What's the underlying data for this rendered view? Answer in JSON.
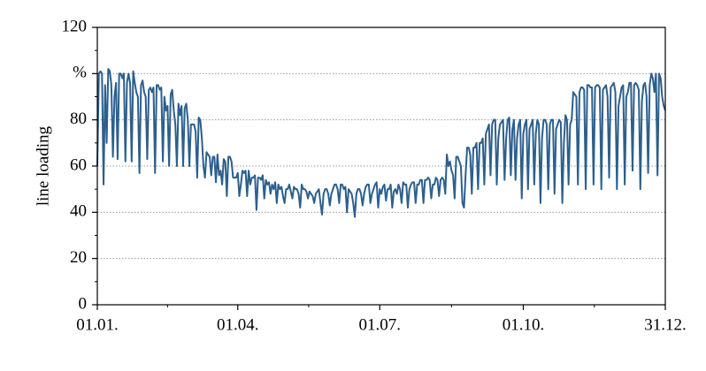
{
  "chart_data": {
    "type": "line",
    "y_label": "line loading",
    "color": "#2c5f8d",
    "xlim": [
      1,
      365
    ],
    "xticks": [
      {
        "value": 1,
        "label": "01.01."
      },
      {
        "value": 91,
        "label": "01.04."
      },
      {
        "value": 182,
        "label": "01.07."
      },
      {
        "value": 274,
        "label": "01.10."
      },
      {
        "value": 365,
        "label": "31.12."
      }
    ],
    "ylim": [
      0,
      120
    ],
    "yticks": [
      0,
      20,
      40,
      60,
      80,
      {
        "value": 100,
        "label": "%"
      },
      120
    ],
    "grid": true,
    "x": [
      1,
      2,
      3,
      4,
      5,
      6,
      7,
      8,
      9,
      10,
      11,
      12,
      13,
      14,
      15,
      16,
      17,
      18,
      19,
      20,
      21,
      22,
      23,
      24,
      25,
      26,
      27,
      28,
      29,
      30,
      31,
      32,
      33,
      34,
      35,
      36,
      37,
      38,
      39,
      40,
      41,
      42,
      43,
      44,
      45,
      46,
      47,
      48,
      49,
      50,
      51,
      52,
      53,
      54,
      55,
      56,
      57,
      58,
      59,
      60,
      61,
      62,
      63,
      64,
      65,
      66,
      67,
      68,
      69,
      70,
      71,
      72,
      73,
      74,
      75,
      76,
      77,
      78,
      79,
      80,
      81,
      82,
      83,
      84,
      85,
      86,
      87,
      88,
      89,
      90,
      91,
      92,
      93,
      94,
      95,
      96,
      97,
      98,
      99,
      100,
      101,
      102,
      103,
      104,
      105,
      106,
      107,
      108,
      109,
      110,
      111,
      112,
      113,
      114,
      115,
      116,
      117,
      118,
      119,
      120,
      121,
      122,
      123,
      124,
      125,
      126,
      127,
      128,
      129,
      130,
      131,
      132,
      133,
      134,
      135,
      136,
      137,
      138,
      139,
      140,
      141,
      142,
      143,
      144,
      145,
      146,
      147,
      148,
      149,
      150,
      151,
      152,
      153,
      154,
      155,
      156,
      157,
      158,
      159,
      160,
      161,
      162,
      163,
      164,
      165,
      166,
      167,
      168,
      169,
      170,
      171,
      172,
      173,
      174,
      175,
      176,
      177,
      178,
      179,
      180,
      181,
      182,
      183,
      184,
      185,
      186,
      187,
      188,
      189,
      190,
      191,
      192,
      193,
      194,
      195,
      196,
      197,
      198,
      199,
      200,
      201,
      202,
      203,
      204,
      205,
      206,
      207,
      208,
      209,
      210,
      211,
      212,
      213,
      214,
      215,
      216,
      217,
      218,
      219,
      220,
      221,
      222,
      223,
      224,
      225,
      226,
      227,
      228,
      229,
      230,
      231,
      232,
      233,
      234,
      235,
      236,
      237,
      238,
      239,
      240,
      241,
      242,
      243,
      244,
      245,
      246,
      247,
      248,
      249,
      250,
      251,
      252,
      253,
      254,
      255,
      256,
      257,
      258,
      259,
      260,
      261,
      262,
      263,
      264,
      265,
      266,
      267,
      268,
      269,
      270,
      271,
      272,
      273,
      274,
      275,
      276,
      277,
      278,
      279,
      280,
      281,
      282,
      283,
      284,
      285,
      286,
      287,
      288,
      289,
      290,
      291,
      292,
      293,
      294,
      295,
      296,
      297,
      298,
      299,
      300,
      301,
      302,
      303,
      304,
      305,
      306,
      307,
      308,
      309,
      310,
      311,
      312,
      313,
      314,
      315,
      316,
      317,
      318,
      319,
      320,
      321,
      322,
      323,
      324,
      325,
      326,
      327,
      328,
      329,
      330,
      331,
      332,
      333,
      334,
      335,
      336,
      337,
      338,
      339,
      340,
      341,
      342,
      343,
      344,
      345,
      346,
      347,
      348,
      349,
      350,
      351,
      352,
      353,
      354,
      355,
      356,
      357,
      358,
      359,
      360,
      361,
      362,
      363,
      364,
      365
    ],
    "values": [
      60,
      100,
      101,
      100,
      52,
      95,
      70,
      102,
      101,
      95,
      64,
      90,
      96,
      63,
      100,
      100,
      98,
      100,
      62,
      96,
      100,
      96,
      62,
      101,
      96,
      92,
      90,
      57,
      95,
      97,
      92,
      90,
      63,
      93,
      94,
      92,
      94,
      57,
      95,
      95,
      93,
      94,
      62,
      90,
      84,
      86,
      60,
      91,
      93,
      84,
      78,
      60,
      87,
      82,
      86,
      60,
      85,
      87,
      80,
      60,
      78,
      78,
      78,
      75,
      55,
      81,
      80,
      72,
      60,
      55,
      66,
      65,
      64,
      56,
      64,
      64,
      53,
      65,
      56,
      58,
      52,
      63,
      62,
      47,
      64,
      64,
      62,
      55,
      55,
      55,
      57,
      47,
      52,
      58,
      57,
      58,
      47,
      58,
      52,
      55,
      55,
      56,
      41,
      55,
      55,
      54,
      56,
      46,
      54,
      52,
      53,
      48,
      52,
      50,
      53,
      44,
      52,
      50,
      51,
      47,
      44,
      50,
      50,
      52,
      49,
      46,
      51,
      50,
      50,
      48,
      42,
      52,
      50,
      50,
      49,
      46,
      49,
      48,
      47,
      44,
      48,
      49,
      50,
      44,
      39,
      48,
      50,
      50,
      48,
      43,
      48,
      50,
      52,
      52,
      50,
      44,
      52,
      52,
      50,
      51,
      40,
      50,
      49,
      48,
      44,
      38,
      48,
      50,
      50,
      48,
      43,
      48,
      51,
      52,
      52,
      44,
      48,
      50,
      52,
      53,
      42,
      50,
      48,
      51,
      52,
      45,
      50,
      50,
      52,
      42,
      49,
      50,
      48,
      52,
      50,
      44,
      53,
      52,
      52,
      42,
      50,
      52,
      53,
      53,
      44,
      52,
      52,
      54,
      54,
      44,
      54,
      54,
      55,
      54,
      46,
      52,
      52,
      55,
      54,
      47,
      54,
      55,
      54,
      48,
      65,
      60,
      62,
      58,
      56,
      46,
      64,
      64,
      62,
      60,
      44,
      42,
      56,
      68,
      68,
      65,
      48,
      68,
      68,
      70,
      50,
      70,
      70,
      72,
      52,
      74,
      76,
      78,
      56,
      78,
      80,
      80,
      52,
      72,
      78,
      79,
      80,
      54,
      72,
      80,
      81,
      56,
      76,
      80,
      54,
      72,
      78,
      80,
      46,
      74,
      78,
      80,
      50,
      76,
      78,
      80,
      52,
      74,
      80,
      78,
      44,
      72,
      80,
      80,
      78,
      50,
      78,
      80,
      80,
      48,
      76,
      78,
      80,
      79,
      44,
      70,
      82,
      80,
      52,
      78,
      80,
      92,
      91,
      90,
      52,
      92,
      94,
      94,
      93,
      50,
      95,
      95,
      94,
      94,
      52,
      94,
      95,
      95,
      94,
      50,
      93,
      94,
      95,
      90,
      55,
      94,
      95,
      96,
      92,
      50,
      86,
      90,
      94,
      95,
      52,
      90,
      92,
      96,
      96,
      58,
      95,
      96,
      95,
      93,
      50,
      88,
      95,
      96,
      90,
      57,
      95,
      100,
      98,
      92,
      100,
      56,
      100,
      98,
      90,
      86,
      84
    ]
  }
}
